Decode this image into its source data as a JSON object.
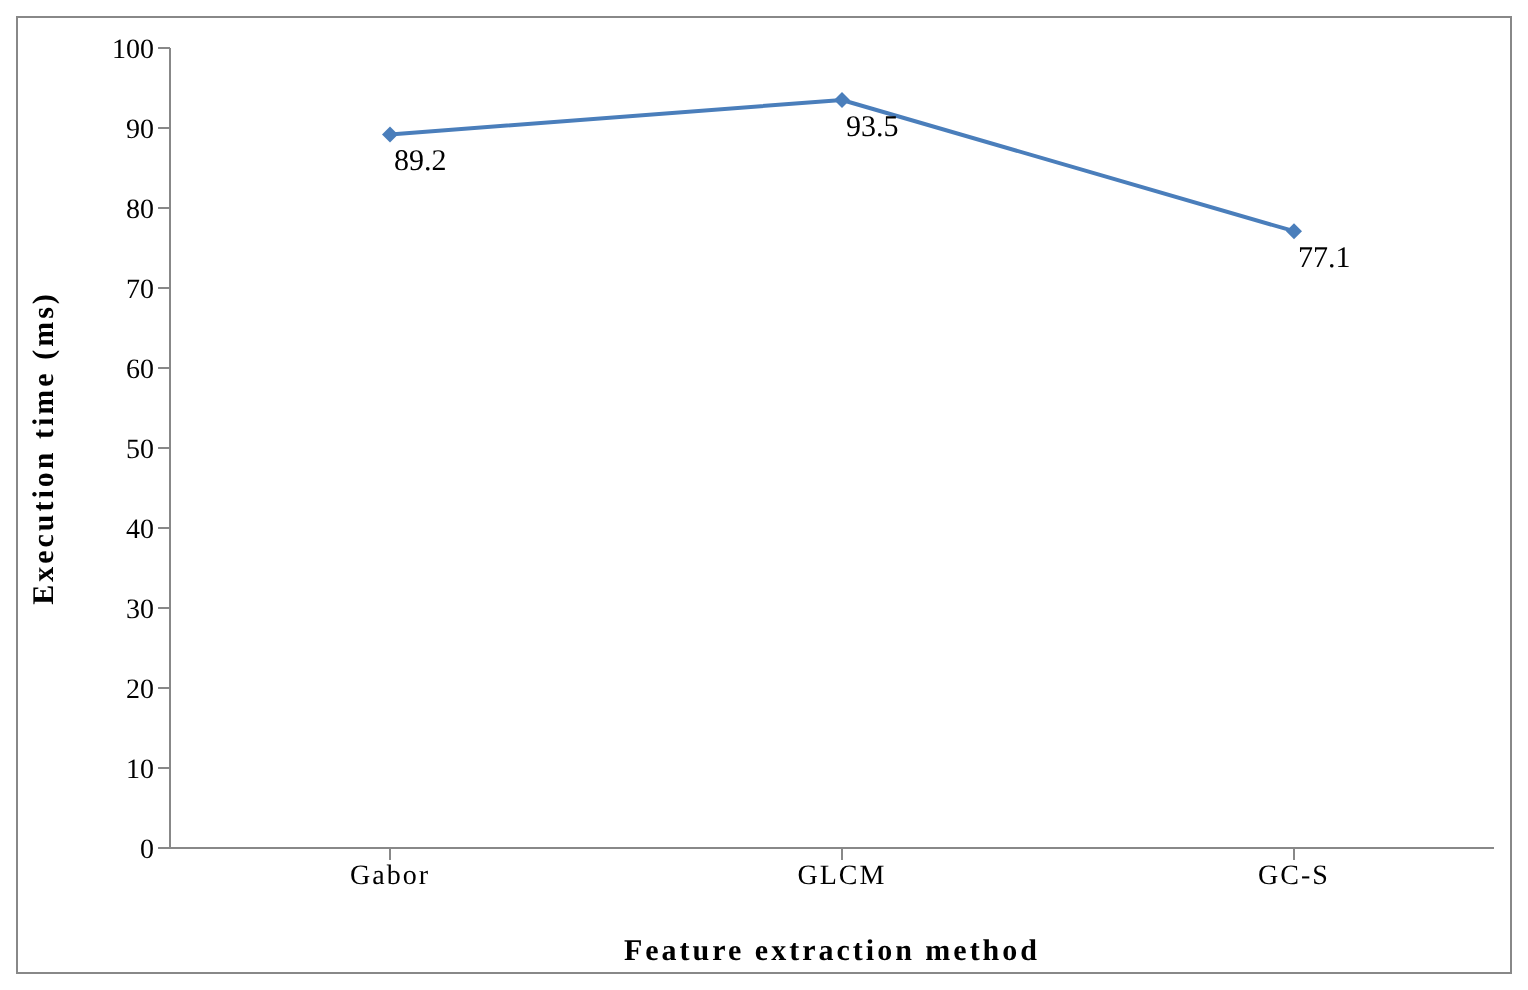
{
  "chart_data": {
    "type": "line",
    "xlabel": "Feature extraction method",
    "ylabel": "Execution time  (ms)",
    "categories": [
      "Gabor",
      "GLCM",
      "GC-S"
    ],
    "series": [
      {
        "color": "#4a7ebb",
        "values": [
          89.2,
          93.5,
          77.1
        ]
      }
    ],
    "ylim": [
      0,
      100
    ],
    "yticks": [
      0,
      10,
      20,
      30,
      40,
      50,
      60,
      70,
      80,
      90,
      100
    ],
    "grid": false,
    "legend": false,
    "marker": "diamond",
    "line_style": "solid",
    "data_labels": true
  }
}
